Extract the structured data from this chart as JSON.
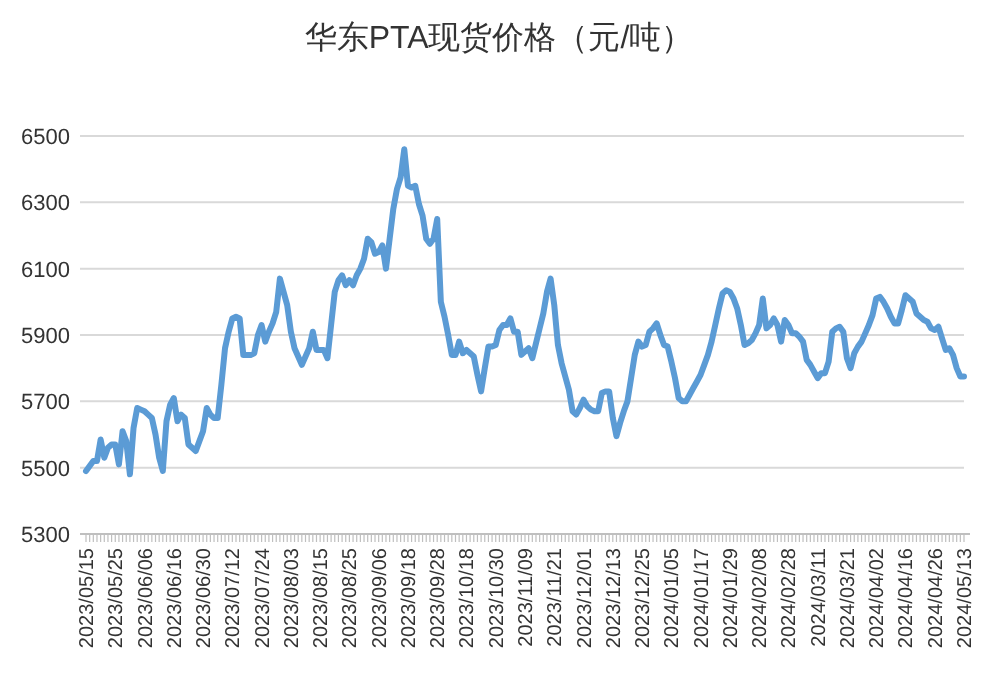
{
  "chart_data": {
    "type": "line",
    "title": "华东PTA现货价格（元/吨）",
    "categories": [
      "2023/05/15",
      null,
      null,
      null,
      null,
      null,
      null,
      null,
      "2023/05/25",
      null,
      null,
      null,
      null,
      null,
      null,
      null,
      "2023/06/06",
      null,
      null,
      null,
      null,
      null,
      null,
      null,
      "2023/06/16",
      null,
      null,
      null,
      null,
      null,
      null,
      null,
      "2023/06/30",
      null,
      null,
      null,
      null,
      null,
      null,
      null,
      "2023/07/12",
      null,
      null,
      null,
      null,
      null,
      null,
      null,
      "2023/07/24",
      null,
      null,
      null,
      null,
      null,
      null,
      null,
      "2023/08/03",
      null,
      null,
      null,
      null,
      null,
      null,
      null,
      "2023/08/15",
      null,
      null,
      null,
      null,
      null,
      null,
      null,
      "2023/08/25",
      null,
      null,
      null,
      null,
      null,
      null,
      null,
      "2023/09/06",
      null,
      null,
      null,
      null,
      null,
      null,
      null,
      "2023/09/18",
      null,
      null,
      null,
      null,
      null,
      null,
      null,
      "2023/09/28",
      null,
      null,
      null,
      null,
      null,
      null,
      null,
      "2023/10/18",
      null,
      null,
      null,
      null,
      null,
      null,
      null,
      "2023/10/30",
      null,
      null,
      null,
      null,
      null,
      null,
      null,
      "2023/11/09",
      null,
      null,
      null,
      null,
      null,
      null,
      null,
      "2023/11/21",
      null,
      null,
      null,
      null,
      null,
      null,
      null,
      "2023/12/01",
      null,
      null,
      null,
      null,
      null,
      null,
      null,
      "2023/12/13",
      null,
      null,
      null,
      null,
      null,
      null,
      null,
      "2023/12/25",
      null,
      null,
      null,
      null,
      null,
      null,
      null,
      "2024/01/05",
      null,
      null,
      null,
      null,
      null,
      null,
      null,
      "2024/01/17",
      null,
      null,
      null,
      null,
      null,
      null,
      null,
      "2024/01/29",
      null,
      null,
      null,
      null,
      null,
      null,
      null,
      "2024/02/08",
      null,
      null,
      null,
      null,
      null,
      null,
      null,
      "2024/02/28",
      null,
      null,
      null,
      null,
      null,
      null,
      null,
      "2024/03/11",
      null,
      null,
      null,
      null,
      null,
      null,
      null,
      "2024/03/21",
      null,
      null,
      null,
      null,
      null,
      null,
      null,
      "2024/04/02",
      null,
      null,
      null,
      null,
      null,
      null,
      null,
      "2024/04/16",
      null,
      null,
      null,
      null,
      null,
      null,
      null,
      "2024/04/26",
      null,
      null,
      null,
      null,
      null,
      null,
      null,
      "2024/05/13"
    ],
    "values": [
      5490,
      5505,
      5520,
      5520,
      5585,
      5530,
      5560,
      5570,
      5570,
      5510,
      5610,
      5580,
      5480,
      5620,
      5680,
      5675,
      5670,
      5660,
      5650,
      5600,
      5530,
      5490,
      5640,
      5690,
      5710,
      5640,
      5660,
      5650,
      5570,
      5560,
      5550,
      5580,
      5610,
      5680,
      5660,
      5650,
      5650,
      5750,
      5860,
      5910,
      5950,
      5955,
      5950,
      5840,
      5840,
      5840,
      5845,
      5900,
      5930,
      5880,
      5910,
      5935,
      5970,
      6070,
      6030,
      5990,
      5910,
      5860,
      5835,
      5810,
      5835,
      5860,
      5910,
      5855,
      5855,
      5855,
      5830,
      5930,
      6030,
      6065,
      6080,
      6050,
      6065,
      6050,
      6080,
      6100,
      6130,
      6190,
      6180,
      6145,
      6150,
      6170,
      6100,
      6190,
      6280,
      6340,
      6375,
      6460,
      6350,
      6345,
      6350,
      6295,
      6260,
      6190,
      6175,
      6190,
      6250,
      6000,
      5955,
      5900,
      5840,
      5840,
      5880,
      5845,
      5855,
      5845,
      5835,
      5780,
      5730,
      5800,
      5865,
      5865,
      5870,
      5915,
      5930,
      5930,
      5950,
      5910,
      5910,
      5840,
      5850,
      5860,
      5830,
      5875,
      5920,
      5965,
      6030,
      6070,
      5990,
      5870,
      5815,
      5775,
      5735,
      5670,
      5660,
      5680,
      5705,
      5685,
      5675,
      5670,
      5670,
      5725,
      5730,
      5730,
      5650,
      5595,
      5635,
      5670,
      5700,
      5770,
      5840,
      5880,
      5865,
      5870,
      5910,
      5920,
      5935,
      5900,
      5870,
      5865,
      5820,
      5770,
      5710,
      5700,
      5700,
      5720,
      5740,
      5760,
      5780,
      5810,
      5840,
      5880,
      5930,
      5980,
      6025,
      6035,
      6030,
      6010,
      5980,
      5930,
      5870,
      5875,
      5885,
      5905,
      5930,
      6010,
      5920,
      5930,
      5950,
      5930,
      5880,
      5945,
      5930,
      5905,
      5905,
      5895,
      5880,
      5825,
      5810,
      5790,
      5770,
      5785,
      5785,
      5820,
      5910,
      5920,
      5925,
      5910,
      5830,
      5800,
      5845,
      5865,
      5880,
      5905,
      5930,
      5960,
      6010,
      6015,
      6000,
      5980,
      5955,
      5935,
      5935,
      5975,
      6020,
      6010,
      6000,
      5965,
      5955,
      5945,
      5940,
      5920,
      5915,
      5925,
      5890,
      5855,
      5860,
      5840,
      5800,
      5775,
      5775
    ],
    "color": "#5b9bd5",
    "ylim": [
      5300,
      6500
    ],
    "yticks": [
      5300,
      5500,
      5700,
      5900,
      6100,
      6300,
      6500
    ],
    "grid": "y"
  }
}
